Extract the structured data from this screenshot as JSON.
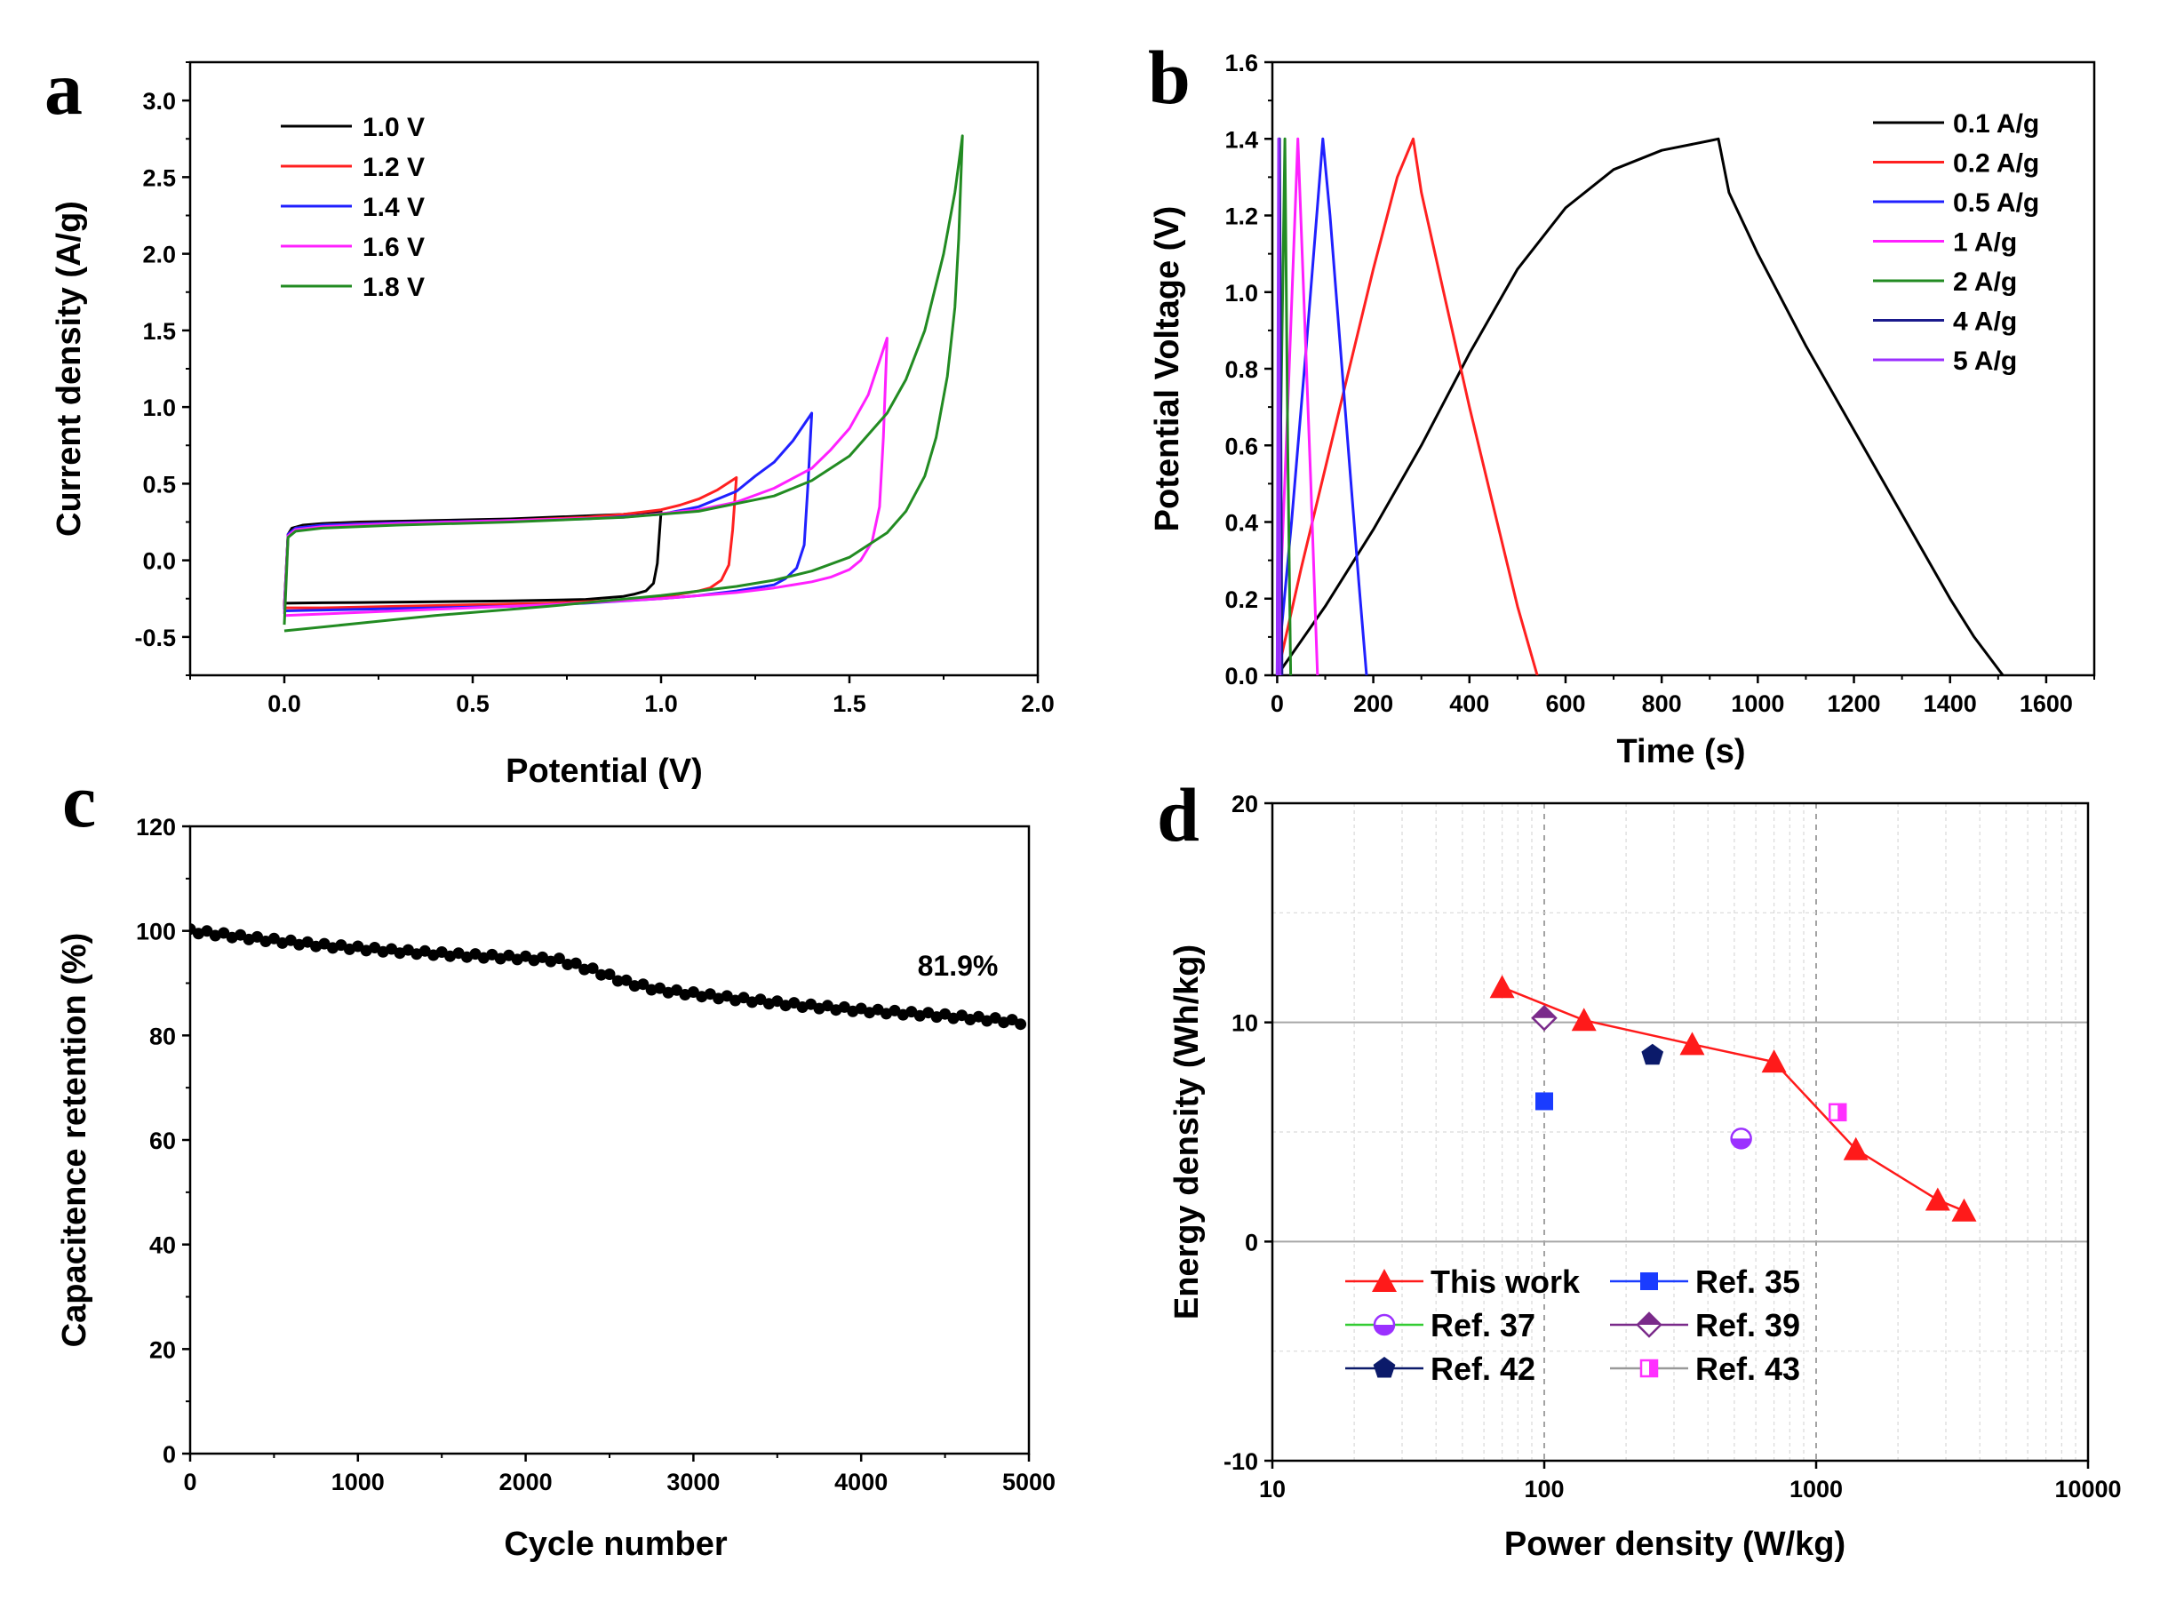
{
  "chart_data": [
    {
      "panel": "a",
      "type": "line",
      "xlabel": "Potential (V)",
      "ylabel": "Current density (A/g)",
      "xlim": [
        -0.25,
        2.0
      ],
      "ylim": [
        -0.75,
        3.25
      ],
      "xticks": [
        "0.0",
        "0.5",
        "1.0",
        "1.5",
        "2.0"
      ],
      "yticks": [
        "-0.5",
        "0.0",
        "0.5",
        "1.0",
        "1.5",
        "2.0",
        "2.5",
        "3.0"
      ],
      "legend": "top-left",
      "series": [
        {
          "name": "1.0 V",
          "color": "#000000",
          "vmax": 1.0,
          "x_upper": [
            0.0,
            0.01,
            0.02,
            0.05,
            0.1,
            0.2,
            0.3,
            0.4,
            0.5,
            0.6,
            0.7,
            0.8,
            0.9,
            0.95,
            1.0
          ],
          "y_upper": [
            -0.3,
            0.17,
            0.21,
            0.23,
            0.24,
            0.25,
            0.255,
            0.26,
            0.265,
            0.27,
            0.28,
            0.29,
            0.3,
            0.31,
            0.32
          ],
          "x_lower": [
            1.0,
            0.995,
            0.99,
            0.98,
            0.96,
            0.93,
            0.9,
            0.8,
            0.6,
            0.4,
            0.2,
            0.1,
            0.0
          ],
          "y_lower": [
            0.32,
            0.15,
            -0.02,
            -0.15,
            -0.2,
            -0.22,
            -0.235,
            -0.255,
            -0.265,
            -0.27,
            -0.275,
            -0.277,
            -0.28
          ]
        },
        {
          "name": "1.2 V",
          "color": "#ff2020",
          "vmax": 1.2,
          "x_upper": [
            0.0,
            0.01,
            0.03,
            0.1,
            0.2,
            0.4,
            0.6,
            0.8,
            0.9,
            1.0,
            1.05,
            1.1,
            1.15,
            1.2
          ],
          "y_upper": [
            -0.3,
            0.17,
            0.21,
            0.23,
            0.24,
            0.25,
            0.26,
            0.28,
            0.3,
            0.33,
            0.36,
            0.4,
            0.46,
            0.54
          ],
          "x_lower": [
            1.2,
            1.19,
            1.18,
            1.16,
            1.13,
            1.1,
            1.05,
            1.0,
            0.9,
            0.7,
            0.5,
            0.3,
            0.1,
            0.0
          ],
          "y_lower": [
            0.54,
            0.2,
            -0.03,
            -0.13,
            -0.18,
            -0.2,
            -0.22,
            -0.24,
            -0.26,
            -0.28,
            -0.29,
            -0.3,
            -0.31,
            -0.31
          ]
        },
        {
          "name": "1.4 V",
          "color": "#2020ff",
          "vmax": 1.4,
          "x_upper": [
            0.0,
            0.01,
            0.03,
            0.1,
            0.3,
            0.5,
            0.8,
            1.0,
            1.1,
            1.2,
            1.25,
            1.3,
            1.35,
            1.4
          ],
          "y_upper": [
            -0.32,
            0.17,
            0.21,
            0.23,
            0.245,
            0.255,
            0.27,
            0.3,
            0.35,
            0.45,
            0.55,
            0.64,
            0.78,
            0.96
          ],
          "x_lower": [
            1.4,
            1.39,
            1.38,
            1.36,
            1.33,
            1.3,
            1.2,
            1.1,
            1.0,
            0.8,
            0.6,
            0.4,
            0.2,
            0.0
          ],
          "y_lower": [
            0.96,
            0.5,
            0.1,
            -0.05,
            -0.12,
            -0.16,
            -0.2,
            -0.23,
            -0.25,
            -0.28,
            -0.3,
            -0.31,
            -0.32,
            -0.33
          ]
        },
        {
          "name": "1.6 V",
          "color": "#ff20ff",
          "vmax": 1.6,
          "x_upper": [
            0.0,
            0.01,
            0.03,
            0.1,
            0.3,
            0.6,
            0.9,
            1.1,
            1.2,
            1.3,
            1.4,
            1.45,
            1.5,
            1.55,
            1.6
          ],
          "y_upper": [
            -0.35,
            0.16,
            0.2,
            0.22,
            0.24,
            0.26,
            0.28,
            0.33,
            0.38,
            0.47,
            0.6,
            0.72,
            0.86,
            1.08,
            1.45
          ],
          "x_lower": [
            1.6,
            1.59,
            1.58,
            1.56,
            1.53,
            1.5,
            1.45,
            1.4,
            1.3,
            1.2,
            1.0,
            0.7,
            0.4,
            0.2,
            0.0
          ],
          "y_lower": [
            1.45,
            0.8,
            0.35,
            0.12,
            0.0,
            -0.06,
            -0.11,
            -0.14,
            -0.18,
            -0.21,
            -0.25,
            -0.29,
            -0.32,
            -0.34,
            -0.36
          ]
        },
        {
          "name": "1.8 V",
          "color": "#228b22",
          "vmax": 1.8,
          "x_upper": [
            0.0,
            0.01,
            0.03,
            0.1,
            0.3,
            0.6,
            0.9,
            1.1,
            1.3,
            1.4,
            1.5,
            1.6,
            1.65,
            1.7,
            1.75,
            1.78,
            1.8
          ],
          "y_upper": [
            -0.42,
            0.15,
            0.19,
            0.21,
            0.23,
            0.25,
            0.28,
            0.32,
            0.42,
            0.52,
            0.68,
            0.96,
            1.18,
            1.5,
            2.0,
            2.4,
            2.77
          ],
          "x_lower": [
            1.8,
            1.79,
            1.78,
            1.76,
            1.73,
            1.7,
            1.65,
            1.6,
            1.5,
            1.4,
            1.3,
            1.2,
            1.0,
            0.7,
            0.4,
            0.2,
            0.0
          ],
          "y_lower": [
            2.77,
            2.1,
            1.65,
            1.2,
            0.8,
            0.55,
            0.32,
            0.18,
            0.02,
            -0.07,
            -0.13,
            -0.17,
            -0.23,
            -0.3,
            -0.36,
            -0.41,
            -0.46
          ]
        }
      ]
    },
    {
      "panel": "b",
      "type": "line",
      "xlabel": "Time (s)",
      "ylabel": "Potential Voltage (V)",
      "xlim": [
        -10,
        1700
      ],
      "ylim": [
        0.0,
        1.6
      ],
      "xticks": [
        "0",
        "200",
        "400",
        "600",
        "800",
        "1000",
        "1200",
        "1400",
        "1600"
      ],
      "yticks": [
        "0.0",
        "0.2",
        "0.4",
        "0.6",
        "0.8",
        "1.0",
        "1.2",
        "1.4",
        "1.6"
      ],
      "legend": "top-right",
      "series": [
        {
          "name": "0.1 A/g",
          "color": "#000000",
          "x": [
            0,
            50,
            100,
            200,
            300,
            400,
            500,
            600,
            700,
            800,
            900,
            918,
            940,
            1000,
            1100,
            1200,
            1300,
            1400,
            1450,
            1510
          ],
          "y": [
            0.0,
            0.09,
            0.18,
            0.38,
            0.6,
            0.84,
            1.06,
            1.22,
            1.32,
            1.37,
            1.395,
            1.4,
            1.26,
            1.1,
            0.86,
            0.64,
            0.42,
            0.2,
            0.1,
            0.0
          ]
        },
        {
          "name": "0.2 A/g",
          "color": "#ff2020",
          "x": [
            0,
            50,
            100,
            150,
            200,
            250,
            283,
            300,
            350,
            400,
            450,
            500,
            541
          ],
          "y": [
            0.0,
            0.28,
            0.54,
            0.8,
            1.06,
            1.3,
            1.4,
            1.26,
            0.98,
            0.7,
            0.44,
            0.18,
            0.0
          ]
        },
        {
          "name": "0.5 A/g",
          "color": "#2020ff",
          "x": [
            0,
            30,
            60,
            95,
            110,
            130,
            150,
            170,
            186
          ],
          "y": [
            0.0,
            0.4,
            0.85,
            1.4,
            1.2,
            0.88,
            0.56,
            0.24,
            0.0
          ]
        },
        {
          "name": "1 A/g",
          "color": "#ff20ff",
          "x": [
            0,
            22,
            43,
            55,
            70,
            84
          ],
          "y": [
            0.0,
            0.7,
            1.4,
            1.0,
            0.5,
            0.0
          ]
        },
        {
          "name": "2 A/g",
          "color": "#228b22",
          "x": [
            0,
            8,
            16,
            22,
            28
          ],
          "y": [
            0.0,
            0.7,
            1.4,
            0.6,
            0.0
          ]
        },
        {
          "name": "4 A/g",
          "color": "#1a1a8c",
          "x": [
            0,
            5,
            10
          ],
          "y": [
            0.0,
            1.4,
            0.0
          ]
        },
        {
          "name": "5 A/g",
          "color": "#9b30ff",
          "x": [
            0,
            3,
            6
          ],
          "y": [
            0.0,
            1.4,
            0.0
          ]
        }
      ]
    },
    {
      "panel": "c",
      "type": "scatter",
      "xlabel": "Cycle number",
      "ylabel": "Capacitence retention (%)",
      "xlim": [
        0,
        5000
      ],
      "ylim": [
        0,
        120
      ],
      "xticks": [
        "0",
        "1000",
        "2000",
        "3000",
        "4000",
        "5000"
      ],
      "yticks": [
        "0",
        "20",
        "40",
        "60",
        "80",
        "100",
        "120"
      ],
      "annotation": "81.9%",
      "color": "#000000",
      "x": [
        0,
        400,
        800,
        1200,
        1600,
        2000,
        2200,
        2400,
        2600,
        2800,
        3200,
        3600,
        4000,
        4400,
        4800,
        4950
      ],
      "y": [
        100,
        98.5,
        97.2,
        96.2,
        95.4,
        94.8,
        94.4,
        92.5,
        90.2,
        88.7,
        87.2,
        85.9,
        84.8,
        84,
        83,
        82.5
      ]
    },
    {
      "panel": "d",
      "type": "scatter",
      "xlabel": "Power density (W/kg)",
      "ylabel": "Energy density (Wh/kg)",
      "xscale": "log",
      "xlim": [
        10,
        10000
      ],
      "ylim": [
        -10,
        20
      ],
      "xticks": [
        "10",
        "100",
        "1000",
        "10000"
      ],
      "yticks": [
        "-10",
        "0",
        "10",
        "20"
      ],
      "legend": "bottom-left",
      "series": [
        {
          "name": "This work",
          "marker": "triangle",
          "color": "#ff1a1a",
          "line": true,
          "x": [
            70,
            140,
            350,
            700,
            1400,
            2800,
            3500
          ],
          "y": [
            11.6,
            10.1,
            9.0,
            8.2,
            4.2,
            1.9,
            1.4
          ]
        },
        {
          "name": "Ref. 35",
          "marker": "square",
          "color": "#1a3cff",
          "x": [
            100
          ],
          "y": [
            6.4
          ]
        },
        {
          "name": "Ref. 37",
          "marker": "half-circle",
          "color": "#9b30ff",
          "x": [
            530
          ],
          "y": [
            4.7
          ]
        },
        {
          "name": "Ref. 39",
          "marker": "diamond",
          "color": "#7a2a8a",
          "x": [
            100
          ],
          "y": [
            10.2
          ]
        },
        {
          "name": "Ref. 42",
          "marker": "pentagon",
          "color": "#0b1a6a",
          "x": [
            250
          ],
          "y": [
            8.5
          ]
        },
        {
          "name": "Ref. 43",
          "marker": "half-square",
          "color": "#ff30ff",
          "x": [
            1200
          ],
          "y": [
            5.9
          ]
        }
      ]
    }
  ],
  "panel_labels": {
    "a": "a",
    "b": "b",
    "c": "c",
    "d": "d"
  }
}
